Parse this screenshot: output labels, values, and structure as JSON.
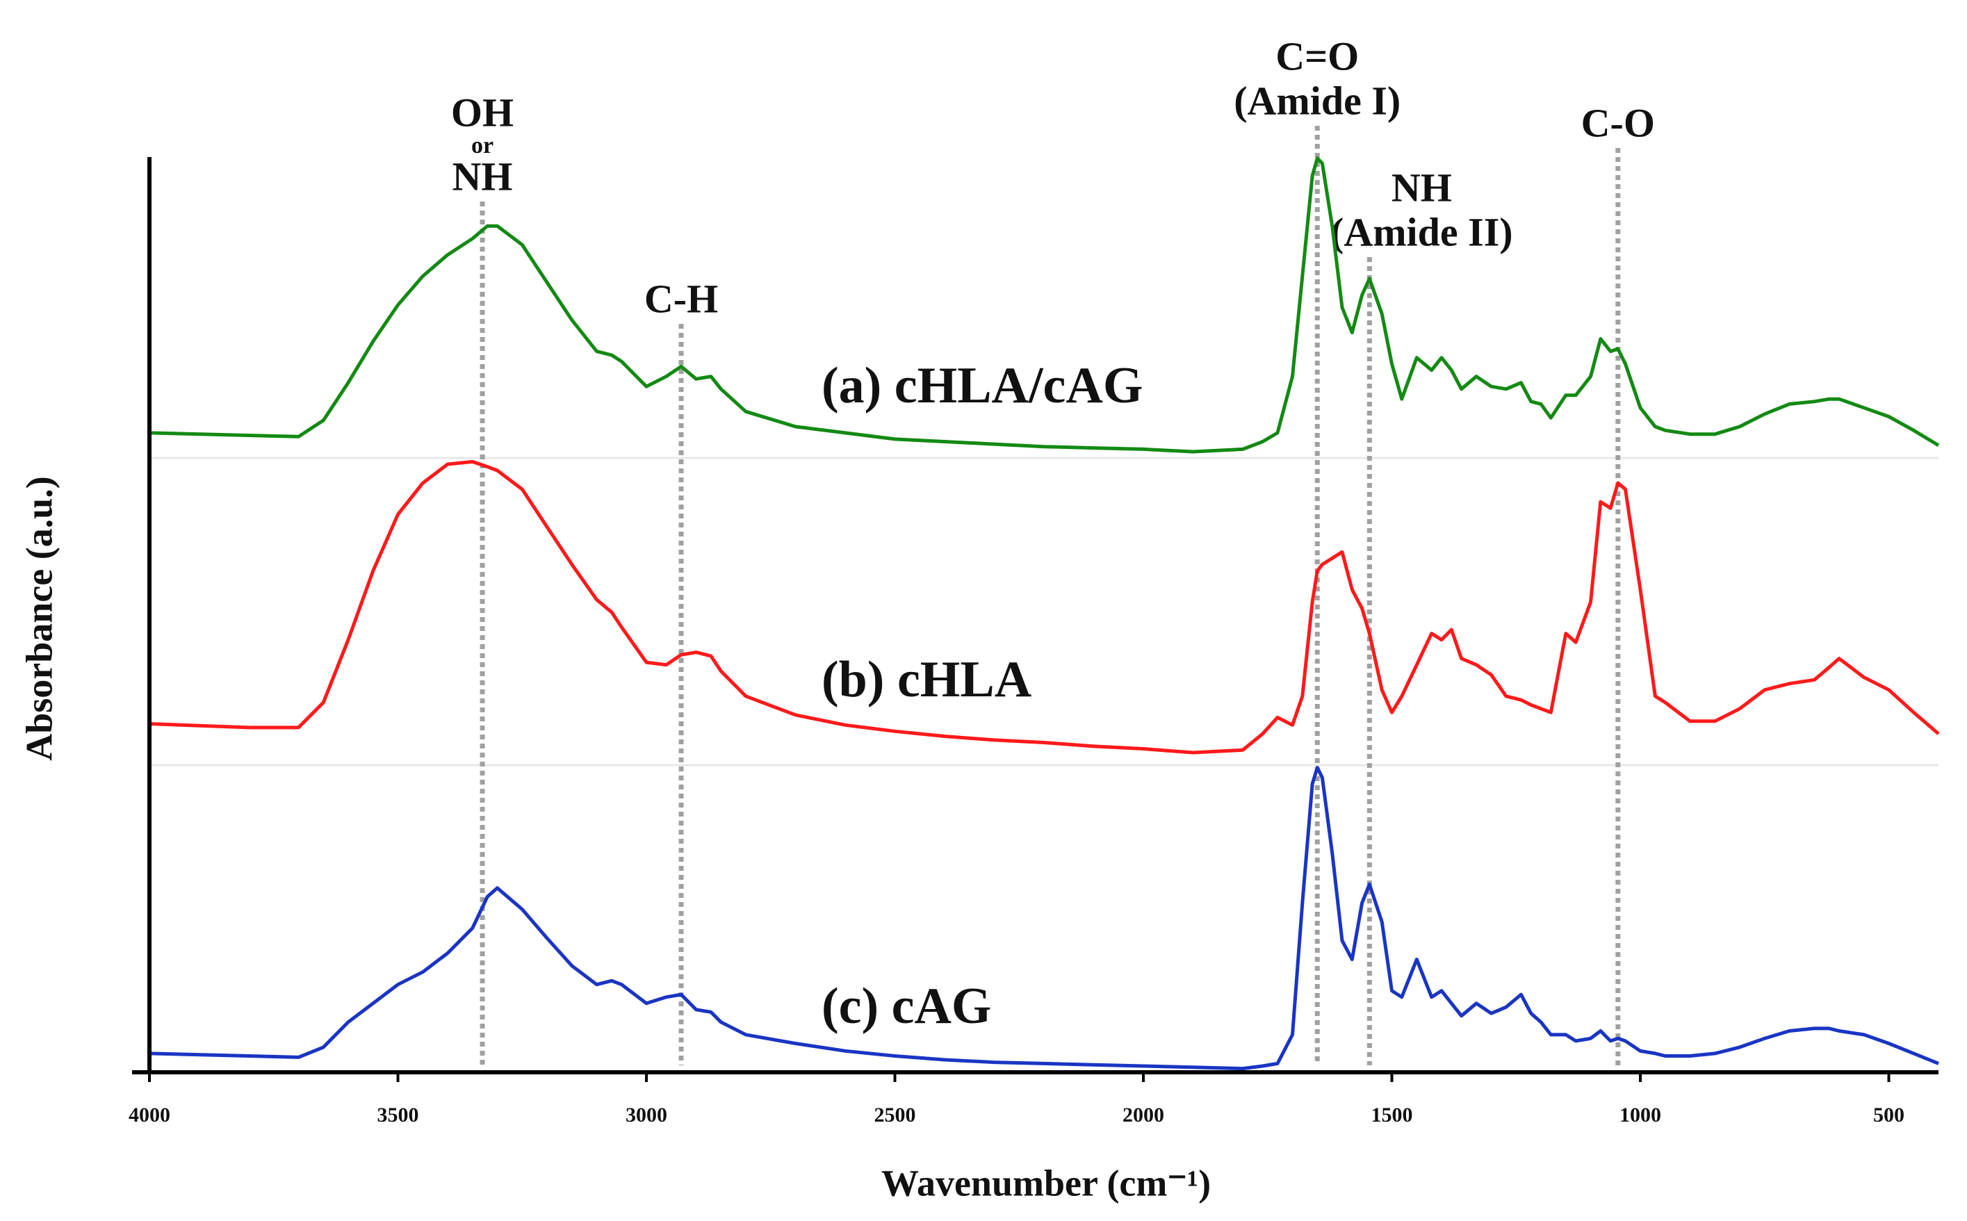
{
  "chart_data": {
    "type": "line",
    "xlabel": "Wavenumber (cm⁻¹)",
    "ylabel": "Absorbance (a.u.)",
    "xlim": [
      4000,
      400
    ],
    "xticks": [
      4000,
      3500,
      3000,
      2500,
      2000,
      1500,
      1000,
      500
    ],
    "ylim": [
      0,
      730
    ],
    "x": [
      4000,
      3800,
      3700,
      3650,
      3600,
      3550,
      3500,
      3450,
      3400,
      3350,
      3320,
      3300,
      3250,
      3200,
      3150,
      3100,
      3070,
      3050,
      3000,
      2960,
      2930,
      2900,
      2870,
      2850,
      2800,
      2700,
      2600,
      2500,
      2400,
      2300,
      2200,
      2100,
      2000,
      1900,
      1800,
      1760,
      1730,
      1700,
      1680,
      1660,
      1650,
      1640,
      1620,
      1600,
      1580,
      1560,
      1545,
      1520,
      1500,
      1480,
      1450,
      1420,
      1400,
      1380,
      1360,
      1330,
      1300,
      1270,
      1240,
      1220,
      1200,
      1180,
      1150,
      1130,
      1100,
      1080,
      1060,
      1045,
      1030,
      1000,
      970,
      950,
      900,
      850,
      800,
      750,
      700,
      650,
      620,
      600,
      550,
      500,
      450,
      400
    ],
    "series": [
      {
        "name": "(a) cHLA/cAG",
        "color": "#138a13",
        "values": [
          510,
          508,
          507,
          520,
          550,
          583,
          612,
          635,
          652,
          665,
          675,
          675,
          660,
          630,
          600,
          575,
          572,
          567,
          547,
          555,
          563,
          553,
          555,
          545,
          527,
          515,
          510,
          505,
          503,
          501,
          499,
          498,
          497,
          495,
          497,
          503,
          510,
          555,
          635,
          715,
          729,
          725,
          675,
          610,
          590,
          620,
          633,
          605,
          565,
          537,
          570,
          560,
          570,
          560,
          545,
          555,
          547,
          545,
          550,
          535,
          533,
          522,
          540,
          540,
          555,
          585,
          575,
          577,
          565,
          530,
          515,
          512,
          509,
          509,
          515,
          525,
          533,
          535,
          537,
          537,
          530,
          523,
          512,
          500
        ]
      },
      {
        "name": "(b) cHLA",
        "color": "#ff1a1a",
        "values": [
          278,
          275,
          275,
          295,
          345,
          400,
          445,
          470,
          485,
          487,
          483,
          480,
          465,
          435,
          405,
          377,
          367,
          355,
          327,
          325,
          333,
          335,
          332,
          320,
          300,
          285,
          277,
          272,
          268,
          265,
          263,
          260,
          258,
          255,
          257,
          270,
          283,
          277,
          300,
          375,
          400,
          405,
          410,
          415,
          385,
          370,
          350,
          305,
          287,
          300,
          325,
          350,
          345,
          353,
          330,
          325,
          317,
          300,
          297,
          293,
          290,
          287,
          350,
          343,
          375,
          455,
          450,
          470,
          465,
          385,
          300,
          295,
          280,
          280,
          290,
          305,
          310,
          313,
          323,
          330,
          315,
          305,
          287,
          270
        ]
      },
      {
        "name": "(c) cAG",
        "color": "#1a35c4",
        "values": [
          15,
          13,
          12,
          20,
          40,
          55,
          70,
          80,
          95,
          115,
          140,
          147,
          130,
          107,
          85,
          70,
          73,
          70,
          55,
          60,
          62,
          50,
          48,
          40,
          30,
          23,
          17,
          13,
          10,
          8,
          7,
          6,
          5,
          4,
          3,
          5,
          7,
          30,
          135,
          230,
          243,
          235,
          175,
          105,
          90,
          135,
          150,
          120,
          65,
          60,
          90,
          60,
          65,
          55,
          45,
          55,
          47,
          52,
          62,
          47,
          40,
          30,
          30,
          25,
          27,
          33,
          25,
          27,
          25,
          17,
          15,
          13,
          13,
          15,
          20,
          27,
          33,
          35,
          35,
          33,
          30,
          23,
          15,
          7
        ]
      }
    ],
    "annotations": [
      {
        "text": [
          "OH",
          "or",
          "NH"
        ],
        "x": 3330
      },
      {
        "text": [
          "C-H"
        ],
        "x": 2930
      },
      {
        "text": [
          "C=O",
          "(Amide I)"
        ],
        "x": 1650
      },
      {
        "text": [
          "NH",
          "(Amide II)"
        ],
        "x": 1545
      },
      {
        "text": [
          "C-O"
        ],
        "x": 1045
      }
    ]
  }
}
